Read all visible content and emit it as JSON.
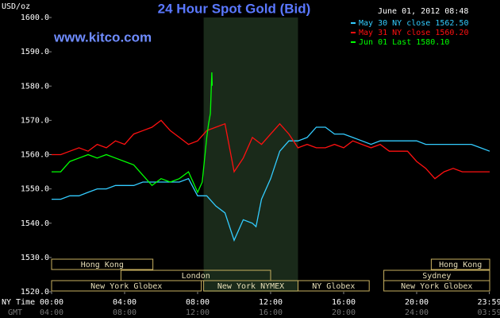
{
  "chart_data": {
    "type": "line",
    "title": "24 Hour Spot Gold (Bid)",
    "watermark": "www.kitco.com",
    "timestamp": "June 01, 2012 08:48",
    "y_unit": "USD/oz",
    "xlim": [
      0,
      24
    ],
    "ylim": [
      1520,
      1600
    ],
    "yticks": [
      {
        "value": 1520,
        "label": "1520.0"
      },
      {
        "value": 1530,
        "label": "1530.0"
      },
      {
        "value": 1540,
        "label": "1540.0"
      },
      {
        "value": 1550,
        "label": "1550.0"
      },
      {
        "value": 1560,
        "label": "1560.0"
      },
      {
        "value": 1570,
        "label": "1570.0"
      },
      {
        "value": 1580,
        "label": "1580.0"
      },
      {
        "value": 1590,
        "label": "1590.0"
      },
      {
        "value": 1600,
        "label": "1600.0"
      }
    ],
    "xticks": [
      {
        "value": 0,
        "label": "00:00"
      },
      {
        "value": 4,
        "label": "04:00"
      },
      {
        "value": 8,
        "label": "08:00"
      },
      {
        "value": 12,
        "label": "12:00"
      },
      {
        "value": 16,
        "label": "16:00"
      },
      {
        "value": 20,
        "label": "20:00"
      },
      {
        "value": 23.98,
        "label": "23:59"
      }
    ],
    "x_row_labels": [
      "NY Time",
      "GMT"
    ],
    "gmt_tick_labels": [
      "04:00",
      "08:00",
      "12:00",
      "16:00",
      "20:00",
      "24:00",
      "03:59"
    ],
    "grid": false,
    "series": [
      {
        "name": "May 30 NY close 1562.50",
        "color": "#33ccff",
        "x": [
          0,
          0.5,
          1,
          1.5,
          2,
          2.5,
          3,
          3.5,
          4,
          4.5,
          5,
          5.5,
          6,
          6.5,
          7,
          7.5,
          8,
          8.5,
          9,
          9.5,
          10,
          10.5,
          11,
          11.2,
          11.5,
          12,
          12.5,
          13,
          13.5,
          14,
          14.5,
          15,
          15.5,
          16,
          16.5,
          17,
          17.5,
          18,
          18.5,
          19,
          19.5,
          20,
          20.5,
          21,
          21.5,
          22,
          22.5,
          23,
          23.5,
          24
        ],
        "values": [
          1547,
          1547,
          1548,
          1548,
          1549,
          1550,
          1550,
          1551,
          1551,
          1551,
          1552,
          1552,
          1552,
          1552,
          1552,
          1553,
          1548,
          1548,
          1545,
          1543,
          1535,
          1541,
          1540,
          1539,
          1547,
          1553,
          1561,
          1564,
          1564,
          1565,
          1568,
          1568,
          1566,
          1566,
          1565,
          1564,
          1563,
          1564,
          1564,
          1564,
          1564,
          1564,
          1563,
          1563,
          1563,
          1563,
          1563,
          1563,
          1562,
          1561
        ]
      },
      {
        "name": "May 31 NY close 1560.20",
        "color": "#ff1010",
        "x": [
          0,
          0.5,
          1,
          1.5,
          2,
          2.5,
          3,
          3.5,
          4,
          4.5,
          5,
          5.5,
          6,
          6.5,
          7,
          7.5,
          8,
          8.5,
          9,
          9.5,
          10,
          10.5,
          11,
          11.5,
          12,
          12.5,
          13,
          13.5,
          14,
          14.5,
          15,
          15.5,
          16,
          16.5,
          17,
          17.5,
          18,
          18.5,
          19,
          19.5,
          20,
          20.5,
          21,
          21.5,
          22,
          22.5,
          23,
          23.5,
          24
        ],
        "values": [
          1560,
          1560,
          1561,
          1562,
          1561,
          1563,
          1562,
          1564,
          1563,
          1566,
          1567,
          1568,
          1570,
          1567,
          1565,
          1563,
          1564,
          1567,
          1568,
          1569,
          1555,
          1559,
          1565,
          1563,
          1566,
          1569,
          1566,
          1562,
          1563,
          1562,
          1562,
          1563,
          1562,
          1564,
          1563,
          1562,
          1563,
          1561,
          1561,
          1561,
          1558,
          1556,
          1553,
          1555,
          1556,
          1555,
          1555,
          1555,
          1555
        ]
      },
      {
        "name": "Jun 01 Last 1580.10",
        "color": "#00ff00",
        "x": [
          0,
          0.5,
          1,
          1.5,
          2,
          2.5,
          3,
          3.5,
          4,
          4.5,
          5,
          5.5,
          6,
          6.5,
          7,
          7.5,
          8,
          8.25,
          8.5,
          8.6,
          8.7,
          8.78,
          8.8
        ],
        "values": [
          1555,
          1555,
          1558,
          1559,
          1560,
          1559,
          1560,
          1559,
          1558,
          1557,
          1554,
          1551,
          1553,
          1552,
          1553,
          1555,
          1549,
          1552,
          1565,
          1569,
          1572,
          1584,
          1580.1
        ]
      }
    ],
    "session_rows": [
      [
        {
          "label": "Hong Kong",
          "start": 0,
          "end": 5.55
        },
        {
          "label": "Hong Kong",
          "start": 20.8,
          "end": 24
        }
      ],
      [
        {
          "label": "London",
          "start": 3.8,
          "end": 12
        },
        {
          "label": "Sydney",
          "start": 18.2,
          "end": 24
        }
      ],
      [
        {
          "label": "New York Globex",
          "start": 0,
          "end": 8.2
        },
        {
          "label": "New York NYMEX",
          "start": 8.33,
          "end": 13.5,
          "shaded": true
        },
        {
          "label": "NY Globex",
          "start": 13.5,
          "end": 17.4
        },
        {
          "label": "New York Globex",
          "start": 18.2,
          "end": 24
        }
      ]
    ]
  }
}
